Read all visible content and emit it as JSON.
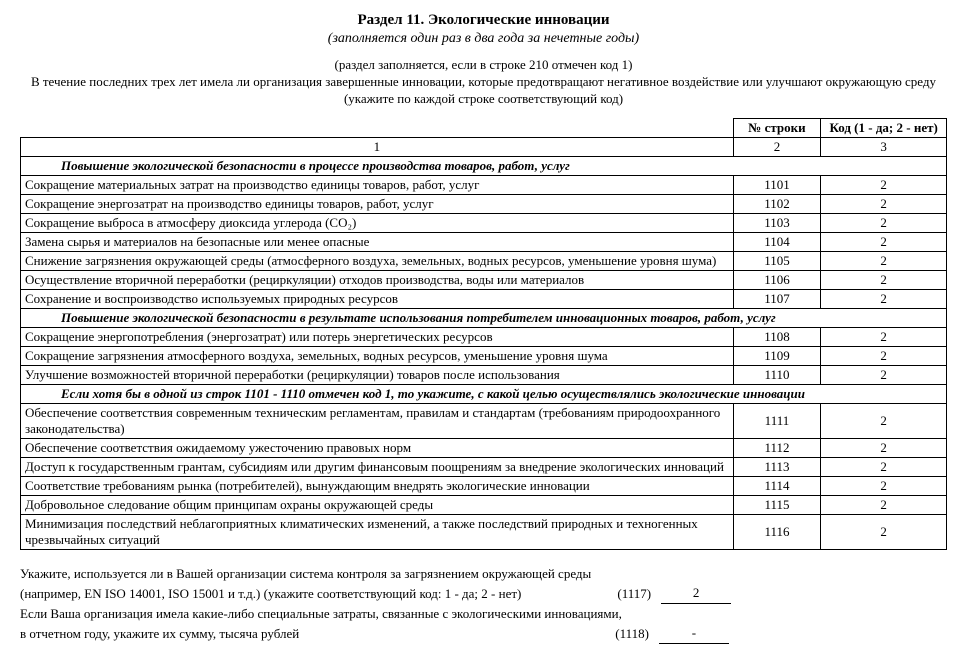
{
  "title": "Раздел 11. Экологические инновации",
  "subtitle": "(заполняется один раз в два года за нечетные годы)",
  "instr1": "(раздел заполняется, если в строке 210 отмечен код 1)",
  "instr2": "В течение последних трех лет имела ли организация завершенные инновации, которые предотвращают негативное воздействие или улучшают окружающую среду",
  "instr3": "(укажите по каждой строке соответствующий код)",
  "headers": {
    "line_no": "№ строки",
    "code": "Код (1 - да; 2 - нет)",
    "c1": "1",
    "c2": "2",
    "c3": "3"
  },
  "sections": {
    "s1": "Повышение экологической безопасности в процессе производства товаров, работ, услуг",
    "s2": "Повышение экологической безопасности в результате использования потребителем инновационных товаров, работ, услуг",
    "s3": "Если хотя бы в одной из строк 1101 - 1110 отмечен код 1, то укажите, с какой целью осуществлялись экологические инновации"
  },
  "rows": {
    "r1101": {
      "desc": "Сокращение материальных затрат на производство единицы товаров, работ, услуг",
      "num": "1101",
      "code": "2"
    },
    "r1102": {
      "desc": "Сокращение энергозатрат на производство единицы товаров, работ, услуг",
      "num": "1102",
      "code": "2"
    },
    "r1103": {
      "desc": "Сокращение выброса в атмосферу диоксида углерода (СО₂)",
      "num": "1103",
      "code": "2"
    },
    "r1104": {
      "desc": "Замена сырья и материалов на безопасные или менее опасные",
      "num": "1104",
      "code": "2"
    },
    "r1105": {
      "desc": "Снижение загрязнения окружающей среды (атмосферного воздуха, земельных, водных ресурсов, уменьшение уровня шума)",
      "num": "1105",
      "code": "2"
    },
    "r1106": {
      "desc": "Осуществление вторичной переработки (рециркуляции) отходов производства, воды или материалов",
      "num": "1106",
      "code": "2"
    },
    "r1107": {
      "desc": "Сохранение и воспроизводство используемых природных ресурсов",
      "num": "1107",
      "code": "2"
    },
    "r1108": {
      "desc": "Сокращение энергопотребления (энергозатрат) или потерь энергетических ресурсов",
      "num": "1108",
      "code": "2"
    },
    "r1109": {
      "desc": "Сокращение загрязнения атмосферного воздуха, земельных, водных ресурсов, уменьшение уровня шума",
      "num": "1109",
      "code": "2"
    },
    "r1110": {
      "desc": "Улучшение возможностей вторичной переработки (рециркуляции) товаров после использования",
      "num": "1110",
      "code": "2"
    },
    "r1111": {
      "desc": "Обеспечение соответствия современным техническим регламентам, правилам и стандартам (требованиям природоохранного законодательства)",
      "num": "1111",
      "code": "2"
    },
    "r1112": {
      "desc": "Обеспечение соответствия ожидаемому ужесточению правовых норм",
      "num": "1112",
      "code": "2"
    },
    "r1113": {
      "desc": "Доступ к государственным грантам, субсидиям или другим финансовым поощрениям за внедрение экологических инноваций",
      "num": "1113",
      "code": "2"
    },
    "r1114": {
      "desc": "Соответствие требованиям рынка (потребителей), вынуждающим внедрять экологические инновации",
      "num": "1114",
      "code": "2"
    },
    "r1115": {
      "desc": "Добровольное следование общим принципам охраны окружающей среды",
      "num": "1115",
      "code": "2"
    },
    "r1116": {
      "desc": "Минимизация последствий неблагоприятных климатических изменений, а также последствий природных и техногенных чрезвычайных ситуаций",
      "num": "1116",
      "code": "2"
    }
  },
  "footer": {
    "q1a": "Укажите, используется ли в Вашей организации система контроля за загрязнением окружающей среды",
    "q1b": "(например, EN ISO 14001, ISO 15001 и т.д.) (укажите соответствующий код: 1 - да; 2 - нет)",
    "q1_code": "(1117)",
    "q1_val": "2",
    "q2a": "Если Ваша организация имела какие-либо специальные затраты, связанные с экологическими инновациями,",
    "q2b": "в отчетном году, укажите их сумму, тысяча рублей",
    "q2_code": "(1118)",
    "q2_val": "-"
  }
}
